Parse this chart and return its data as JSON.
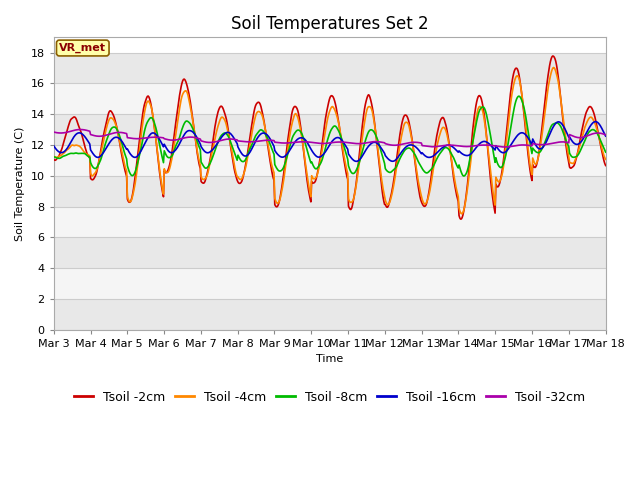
{
  "title": "Soil Temperatures Set 2",
  "xlabel": "Time",
  "ylabel": "Soil Temperature (C)",
  "ylim": [
    0,
    19
  ],
  "yticks": [
    0,
    2,
    4,
    6,
    8,
    10,
    12,
    14,
    16,
    18
  ],
  "x_labels": [
    "Mar 3",
    "Mar 4",
    "Mar 5",
    "Mar 6",
    "Mar 7",
    "Mar 8",
    "Mar 9",
    "Mar 10",
    "Mar 11",
    "Mar 12",
    "Mar 13",
    "Mar 14",
    "Mar 15",
    "Mar 16",
    "Mar 17",
    "Mar 18"
  ],
  "series": {
    "Tsoil -2cm": {
      "color": "#cc0000",
      "lw": 1.2
    },
    "Tsoil -4cm": {
      "color": "#ff8800",
      "lw": 1.2
    },
    "Tsoil -8cm": {
      "color": "#00bb00",
      "lw": 1.2
    },
    "Tsoil -16cm": {
      "color": "#0000cc",
      "lw": 1.2
    },
    "Tsoil -32cm": {
      "color": "#aa00aa",
      "lw": 1.2
    }
  },
  "annotation_text": "VR_met",
  "background_color": "#ffffff",
  "band_color_light": "#e8e8e8",
  "band_color_dark": "#f5f5f5",
  "title_fontsize": 12,
  "axis_fontsize": 8,
  "legend_fontsize": 9
}
